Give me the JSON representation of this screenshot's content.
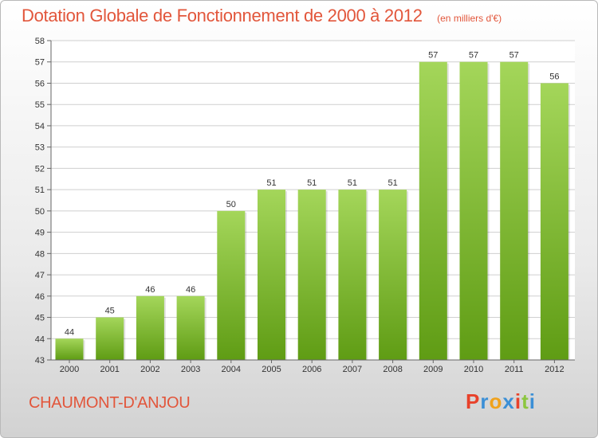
{
  "header": {
    "title": "Dotation Globale de Fonctionnement de 2000 à 2012",
    "subtitle": "(en milliers d'€)"
  },
  "footer": {
    "commune": "CHAUMONT-D'ANJOU",
    "logo": {
      "letters": [
        "P",
        "r",
        "o",
        "x",
        "i",
        "t",
        "i"
      ],
      "colors": [
        "#e8412a",
        "#3b8fd6",
        "#f0a21c",
        "#3b8fd6",
        "#e8412a",
        "#8cc63f",
        "#3b8fd6"
      ]
    }
  },
  "colors": {
    "bar_light": "#a4d65a",
    "bar_dark": "#5f9c14",
    "title": "#e2563b",
    "grid": "#cfcfcf"
  },
  "chart_data": {
    "type": "bar",
    "categories": [
      "2000",
      "2001",
      "2002",
      "2003",
      "2004",
      "2005",
      "2006",
      "2007",
      "2008",
      "2009",
      "2010",
      "2011",
      "2012"
    ],
    "values": [
      44,
      45,
      46,
      46,
      50,
      51,
      51,
      51,
      51,
      57,
      57,
      57,
      56
    ],
    "ylim": [
      43,
      58
    ],
    "yticks": [
      43,
      44,
      45,
      46,
      47,
      48,
      49,
      50,
      51,
      52,
      53,
      54,
      55,
      56,
      57,
      58
    ],
    "grid": true,
    "data_labels": true
  }
}
